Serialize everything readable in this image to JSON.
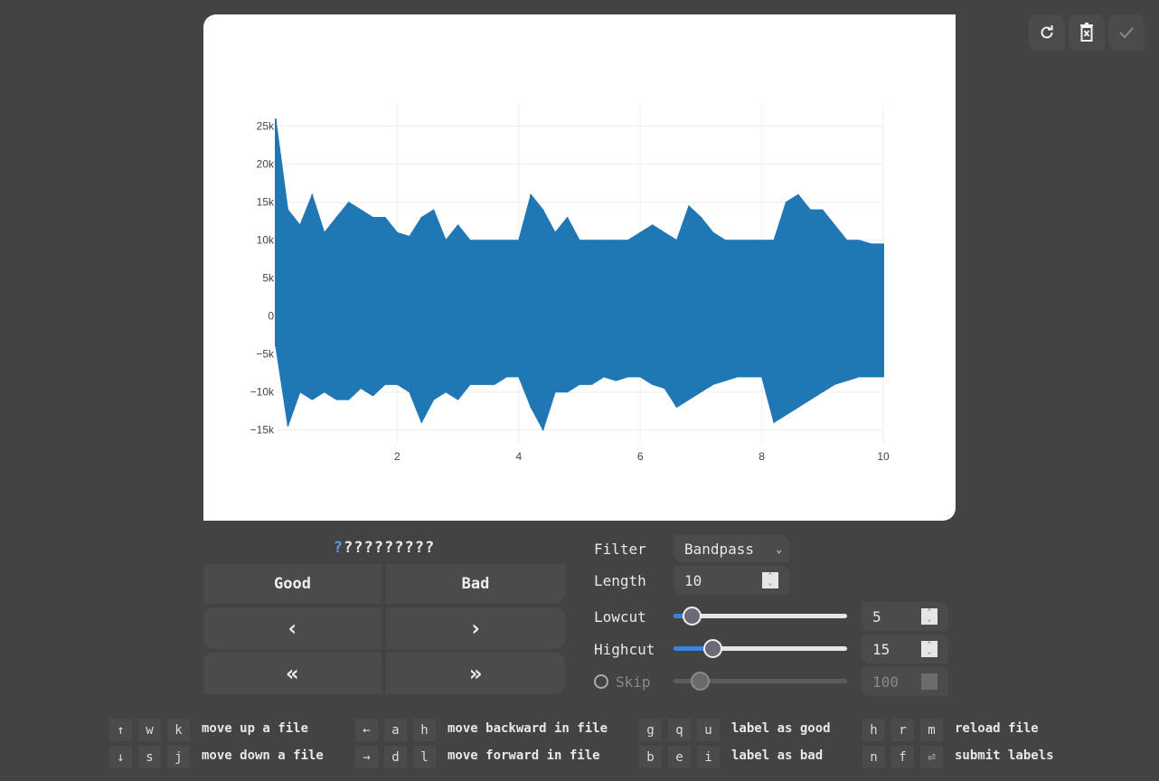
{
  "toolbar": {
    "reload_icon": "refresh-icon",
    "delete_icon": "trash-x-icon",
    "submit_icon": "check-icon"
  },
  "chart_data": {
    "type": "line",
    "xlim": [
      0,
      10
    ],
    "ylim": [
      -16700,
      27700
    ],
    "x_ticks": [
      "2",
      "4",
      "6",
      "8",
      "10"
    ],
    "y_ticks": [
      "25k",
      "20k",
      "15k",
      "10k",
      "5k",
      "0",
      "−5k",
      "−10k",
      "−15k"
    ],
    "grid": true,
    "color": "#1f77b4",
    "envelope": {
      "x": [
        0,
        0.2,
        0.4,
        0.6,
        0.8,
        1,
        1.2,
        1.4,
        1.6,
        1.8,
        2,
        2.2,
        2.4,
        2.6,
        2.8,
        3,
        3.2,
        3.4,
        3.6,
        3.8,
        4,
        4.2,
        4.4,
        4.6,
        4.8,
        5,
        5.2,
        5.4,
        5.6,
        5.8,
        6,
        6.2,
        6.4,
        6.6,
        6.8,
        7,
        7.2,
        7.4,
        7.6,
        7.8,
        8,
        8.2,
        8.4,
        8.6,
        8.8,
        9,
        9.2,
        9.4,
        9.6,
        9.8,
        10
      ],
      "max": [
        26000,
        14000,
        12000,
        16000,
        11000,
        13000,
        15000,
        14000,
        13000,
        13000,
        11000,
        10500,
        13000,
        14000,
        10000,
        12000,
        10000,
        10000,
        10000,
        10000,
        10000,
        16000,
        14000,
        11000,
        13000,
        10000,
        10000,
        10000,
        10000,
        10000,
        11000,
        12000,
        11000,
        10000,
        14500,
        13000,
        11000,
        10000,
        10000,
        10000,
        10000,
        10000,
        15000,
        16000,
        14000,
        14000,
        12000,
        10000,
        10000,
        9500,
        9500
      ],
      "min": [
        -4000,
        -14500,
        -10000,
        -11000,
        -10000,
        -11000,
        -11000,
        -9500,
        -10500,
        -9000,
        -9000,
        -10000,
        -14000,
        -11000,
        -10000,
        -11000,
        -9000,
        -9000,
        -9000,
        -8000,
        -8000,
        -12000,
        -15000,
        -10000,
        -10000,
        -9000,
        -9000,
        -8000,
        -8500,
        -8000,
        -8000,
        -9000,
        -9500,
        -12000,
        -11000,
        -10000,
        -9000,
        -8500,
        -8000,
        -8000,
        -8000,
        -14000,
        -13000,
        -12000,
        -11000,
        -10000,
        -9000,
        -8500,
        -8000,
        -8000,
        -8000
      ]
    }
  },
  "labels": {
    "sequence": [
      "?",
      "?",
      "?",
      "?",
      "?",
      "?",
      "?",
      "?",
      "?",
      "?"
    ],
    "current_index": 0
  },
  "buttons": {
    "good": "Good",
    "bad": "Bad",
    "prev": "‹",
    "next": "›",
    "prev_file": "«",
    "next_file": "»"
  },
  "controls": {
    "filter": {
      "label": "Filter",
      "value": "Bandpass"
    },
    "length": {
      "label": "Length",
      "value": "10"
    },
    "lowcut": {
      "label": "Lowcut",
      "value": "5",
      "slider_fraction": 0.06
    },
    "highcut": {
      "label": "Highcut",
      "value": "15",
      "slider_fraction": 0.18
    },
    "skip": {
      "label": "Skip",
      "value": "100",
      "enabled": false,
      "slider_fraction": 0.11
    }
  },
  "shortcuts": [
    {
      "keys": [
        "↑",
        "w",
        "k"
      ],
      "desc": "move up a file"
    },
    {
      "keys": [
        "↓",
        "s",
        "j"
      ],
      "desc": "move down a file"
    },
    {
      "keys": [
        "←",
        "a",
        "h"
      ],
      "desc": "move backward in file"
    },
    {
      "keys": [
        "→",
        "d",
        "l"
      ],
      "desc": "move forward in file"
    },
    {
      "keys": [
        "g",
        "q",
        "u"
      ],
      "desc": "label as good"
    },
    {
      "keys": [
        "b",
        "e",
        "i"
      ],
      "desc": "label as bad"
    },
    {
      "keys": [
        "h",
        "r",
        "m"
      ],
      "desc": "reload file"
    },
    {
      "keys": [
        "n",
        "f",
        "⏎"
      ],
      "desc": "submit labels"
    }
  ]
}
